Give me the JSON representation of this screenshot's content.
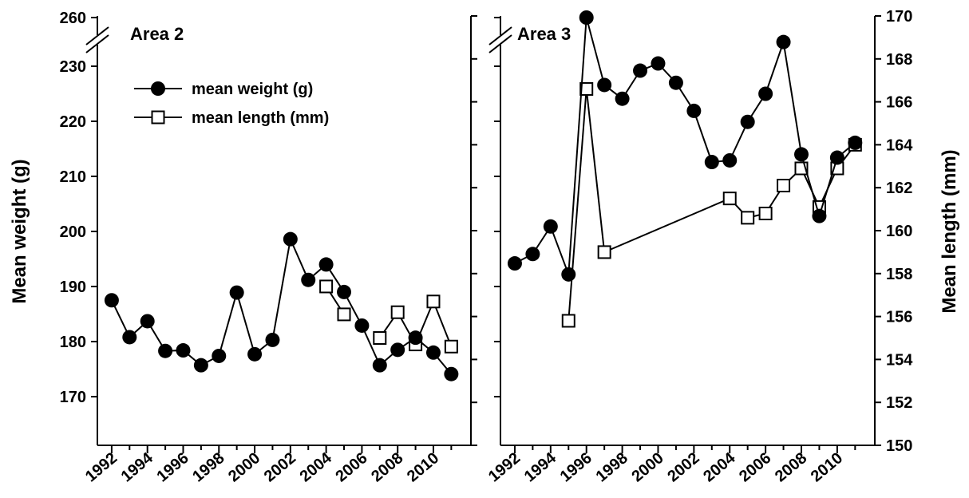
{
  "chart_data": [
    {
      "type": "line",
      "title": "Area 2",
      "ylabel": "Mean weight (g)",
      "xlabel": "",
      "x_ticks": [
        "1992",
        "1994",
        "1996",
        "1998",
        "2000",
        "2002",
        "2004",
        "2006",
        "2008",
        "2010"
      ],
      "y_ticks": [
        "170",
        "180",
        "190",
        "200",
        "210",
        "220",
        "230",
        "260"
      ],
      "y_axis_break": true,
      "legend": {
        "placement": "top-left",
        "entries": [
          "mean weight (g)",
          "mean length (mm)"
        ]
      },
      "series": [
        {
          "name": "mean weight (g)",
          "marker": "filled-circle",
          "axis": "left",
          "x": [
            1992,
            1993,
            1994,
            1995,
            1996,
            1997,
            1998,
            1999,
            2000,
            2001,
            2002,
            2003,
            2004,
            2005,
            2006,
            2007,
            2008,
            2009,
            2010,
            2011
          ],
          "y": [
            187.5,
            180.8,
            183.7,
            178.3,
            178.4,
            175.7,
            177.4,
            188.9,
            177.7,
            180.3,
            198.6,
            191.2,
            194.0,
            189.0,
            182.9,
            175.7,
            178.5,
            180.7,
            178.0,
            174.1
          ]
        },
        {
          "name": "mean length (mm)",
          "marker": "open-square",
          "axis": "right",
          "x": [
            2004,
            2005,
            2006,
            2007,
            2008,
            2009,
            2010,
            2011
          ],
          "y": [
            157.4,
            156.1,
            null,
            155.0,
            156.2,
            154.7,
            156.7,
            154.6
          ]
        }
      ]
    },
    {
      "type": "line",
      "title": "Area 3",
      "ylabel": "Mean length (mm)",
      "xlabel": "",
      "x_ticks": [
        "1992",
        "1994",
        "1996",
        "1998",
        "2000",
        "2002",
        "2004",
        "2006",
        "2008",
        "2010"
      ],
      "y_ticks": [
        "150",
        "152",
        "154",
        "156",
        "158",
        "160",
        "162",
        "164",
        "166",
        "168",
        "170"
      ],
      "y_axis_break": true,
      "series": [
        {
          "name": "mean weight (g)",
          "marker": "filled-circle",
          "axis": "left",
          "x": [
            1992,
            1993,
            1994,
            1995,
            1996,
            1997,
            1998,
            1999,
            2000,
            2001,
            2002,
            2003,
            2004,
            2005,
            2006,
            2007,
            2008,
            2009,
            2010,
            2011
          ],
          "y": [
            194.2,
            195.9,
            200.9,
            192.2,
            260.0,
            226.6,
            224.1,
            229.2,
            230.5,
            227.0,
            221.9,
            212.6,
            212.9,
            219.9,
            225.0,
            234.4,
            214.0,
            202.8,
            213.4,
            216.1
          ]
        },
        {
          "name": "mean length (mm)",
          "marker": "open-square",
          "axis": "right",
          "x": [
            1995,
            1996,
            1997,
            2004,
            2005,
            2006,
            2007,
            2008,
            2009,
            2010,
            2011
          ],
          "y": [
            155.8,
            166.6,
            159.0,
            161.5,
            160.6,
            160.8,
            162.1,
            162.9,
            161.1,
            162.9,
            164.0
          ]
        }
      ]
    }
  ]
}
